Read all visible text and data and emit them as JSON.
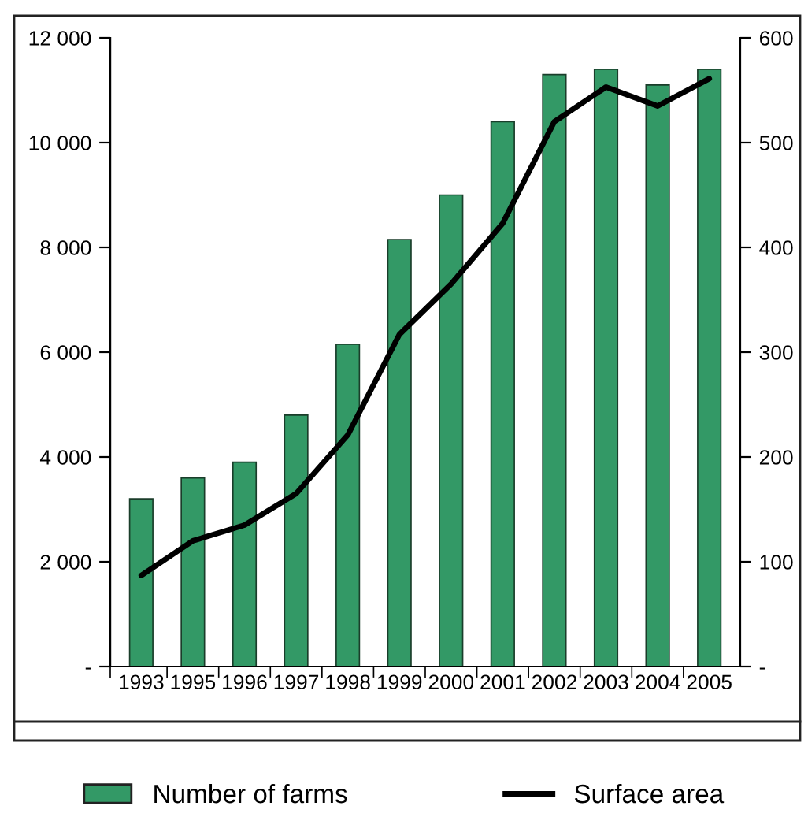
{
  "chart_data": {
    "type": "bar",
    "categories": [
      "1993",
      "1995",
      "1996",
      "1997",
      "1998",
      "1999",
      "2000",
      "2001",
      "2002",
      "2003",
      "2004",
      "2005"
    ],
    "series": [
      {
        "name": "Number of farms",
        "color": "#339966",
        "values": [
          3200,
          3600,
          3900,
          4800,
          6150,
          8150,
          9000,
          10400,
          11300,
          11400,
          11100,
          11400
        ]
      },
      {
        "name": "Surface area",
        "type": "line",
        "axis": "y2",
        "color": "#000000",
        "values": [
          87,
          120,
          135,
          165,
          221,
          317,
          365,
          423,
          520,
          553,
          535,
          561
        ]
      }
    ],
    "ylim": [
      0,
      12000
    ],
    "yticks": [
      {
        "value": 0,
        "label": "-"
      },
      {
        "value": 2000,
        "label": "2 000"
      },
      {
        "value": 4000,
        "label": "4 000"
      },
      {
        "value": 6000,
        "label": "6 000"
      },
      {
        "value": 8000,
        "label": "8 000"
      },
      {
        "value": 10000,
        "label": "10 000"
      },
      {
        "value": 12000,
        "label": "12 000"
      }
    ],
    "y2lim": [
      0,
      600
    ],
    "y2ticks": [
      {
        "value": 0,
        "label": "-"
      },
      100,
      200,
      300,
      400,
      500,
      600
    ],
    "legend": "bottom",
    "grid": false,
    "marker": "none",
    "line_style": "solid"
  }
}
